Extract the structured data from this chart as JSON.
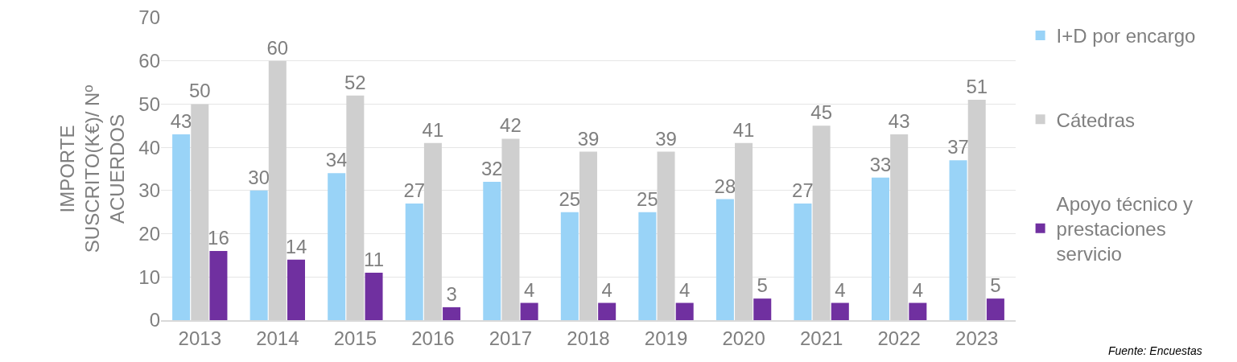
{
  "chart_data": {
    "type": "bar",
    "ylabel": "IMPORTE SUSCRITO(K€)/ Nº ACUERDOS",
    "categories": [
      "2013",
      "2014",
      "2015",
      "2016",
      "2017",
      "2018",
      "2019",
      "2020",
      "2021",
      "2022",
      "2023"
    ],
    "series": [
      {
        "name": "I+D por encargo",
        "color": "#99d3f7",
        "values": [
          43,
          30,
          34,
          27,
          32,
          25,
          25,
          28,
          27,
          33,
          37
        ]
      },
      {
        "name": "Cátedras",
        "color": "#cfcfcf",
        "values": [
          50,
          60,
          52,
          41,
          42,
          39,
          39,
          41,
          45,
          43,
          51
        ]
      },
      {
        "name": "Apoyo técnico y prestaciones servicio",
        "color": "#7030a0",
        "values": [
          16,
          14,
          11,
          3,
          4,
          4,
          4,
          5,
          4,
          4,
          5
        ]
      }
    ],
    "ylim": [
      0,
      70
    ],
    "yticks": [
      0,
      10,
      20,
      30,
      40,
      50,
      60,
      70
    ],
    "grid": "y",
    "legend": "right",
    "data_labels": true,
    "annotations": [
      "Fuente: Encuestas"
    ]
  }
}
